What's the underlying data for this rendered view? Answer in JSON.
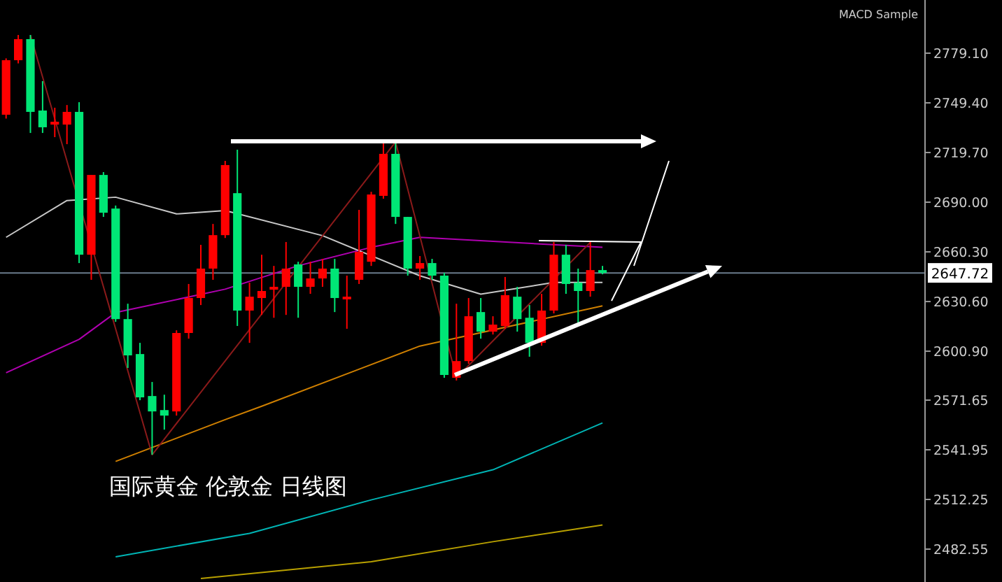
{
  "chart_data": {
    "type": "candlestick",
    "title": "国际黄金 伦敦金 日线图",
    "annotations": [
      "MACD Sample"
    ],
    "categories": [
      null,
      null,
      null,
      null,
      null,
      null,
      null,
      null,
      null,
      null,
      null,
      null,
      null,
      null,
      null,
      null,
      null,
      null,
      null,
      null,
      null,
      null,
      null,
      null,
      null,
      null,
      null,
      null,
      null,
      null,
      null,
      null,
      null,
      null,
      null,
      null,
      null,
      null,
      null,
      null,
      null,
      null,
      null,
      null,
      null,
      null,
      null,
      null,
      null,
      null,
      null,
      null,
      null,
      null,
      null,
      null,
      null,
      null,
      null,
      null,
      null,
      null,
      null,
      null,
      null,
      null,
      null,
      null,
      null,
      null,
      null,
      null,
      null,
      null,
      null,
      null
    ],
    "ohlc": [
      [
        2742.3,
        2776,
        2740,
        2774.9
      ],
      [
        2774.9,
        2790,
        2773,
        2787.5
      ],
      [
        2787.5,
        2790,
        2731.4,
        2744
      ],
      [
        2744.8,
        2762.4,
        2731.4,
        2734.8
      ],
      [
        2736.4,
        2746.5,
        2728.9,
        2738.1
      ],
      [
        2736.4,
        2748.1,
        2724.7,
        2744
      ],
      [
        2744,
        2749.8,
        2653.6,
        2658.6
      ],
      [
        2658.6,
        2706.3,
        2643.6,
        2706.3
      ],
      [
        2706.3,
        2708,
        2681.2,
        2683.7
      ],
      [
        2686.2,
        2688,
        2618.5,
        2620.1
      ],
      [
        2620.1,
        2629.3,
        2590.9,
        2598.4
      ],
      [
        2599.2,
        2605.9,
        2571.6,
        2573.3
      ],
      [
        2574.1,
        2582.5,
        2539,
        2564.9
      ],
      [
        2565.7,
        2574.9,
        2554,
        2562.4
      ],
      [
        2564.9,
        2613.4,
        2562.4,
        2611.8
      ],
      [
        2611.8,
        2641.1,
        2608.4,
        2632.7
      ],
      [
        2632.7,
        2664.5,
        2628.5,
        2650.3
      ],
      [
        2650.3,
        2677,
        2643.6,
        2670.3
      ],
      [
        2670.3,
        2714.7,
        2668.6,
        2712.2
      ],
      [
        2695.4,
        2721.4,
        2616,
        2625.2
      ],
      [
        2625.2,
        2641.9,
        2605.9,
        2633.5
      ],
      [
        2632.7,
        2658.6,
        2622.6,
        2636.9
      ],
      [
        2637.7,
        2651.9,
        2620.9,
        2639.4
      ],
      [
        2639.4,
        2666.2,
        2622.6,
        2650.3
      ],
      [
        2652.8,
        2654.4,
        2620.9,
        2639.4
      ],
      [
        2639.4,
        2654.4,
        2635.2,
        2644.4
      ],
      [
        2644.4,
        2656.1,
        2639.4,
        2650.3
      ],
      [
        2650.3,
        2656.1,
        2624.3,
        2632.7
      ],
      [
        2631.9,
        2646.1,
        2614.3,
        2633.5
      ],
      [
        2643.6,
        2685.4,
        2641.1,
        2660.3
      ],
      [
        2654.4,
        2696.2,
        2651.9,
        2694.6
      ],
      [
        2693.8,
        2725.5,
        2692.1,
        2718.9
      ],
      [
        2718.9,
        2725.5,
        2677,
        2681.2
      ],
      [
        2681.2,
        2681.2,
        2646.1,
        2650.3
      ],
      [
        2650.3,
        2657.8,
        2643.6,
        2653.6
      ],
      [
        2653.6,
        2656.1,
        2643.6,
        2646.1
      ],
      [
        2646.1,
        2647.8,
        2585,
        2586.7
      ],
      [
        2585,
        2629.3,
        2583.4,
        2595
      ],
      [
        2595,
        2632.7,
        2593.4,
        2621.8
      ],
      [
        2624.3,
        2632.7,
        2608.4,
        2612.6
      ],
      [
        2612.6,
        2621.8,
        2610.9,
        2616.8
      ],
      [
        2615.9,
        2645.3,
        2614.3,
        2634.4
      ],
      [
        2633.5,
        2639.4,
        2612.6,
        2620.1
      ],
      [
        2620.9,
        2628.5,
        2597.6,
        2605.9
      ],
      [
        2605.9,
        2635.2,
        2604.2,
        2625.2
      ],
      [
        2625.2,
        2666.2,
        2623.5,
        2658.6
      ],
      [
        2658.6,
        2664.5,
        2635.2,
        2641.1
      ],
      [
        2641.9,
        2650.3,
        2615.9,
        2636.9
      ],
      [
        2636.9,
        2666.2,
        2633.5,
        2649.4
      ],
      [
        2649.4,
        2651.9,
        2646.9,
        2647.72
      ],
      null,
      null,
      null,
      null,
      null,
      null,
      null,
      null,
      null,
      null,
      null,
      null,
      null,
      null,
      null,
      null,
      null,
      null,
      null,
      null,
      null,
      null,
      null,
      null,
      null,
      null
    ],
    "colors": [
      "#ff0000",
      "#ff0000",
      "#00e676",
      "#00e676",
      "#ff0000",
      "#ff0000",
      "#00e676",
      "#ff0000",
      "#00e676",
      "#00e676",
      "#00e676",
      "#00e676",
      "#00e676",
      "#00e676",
      "#ff0000",
      "#ff0000",
      "#ff0000",
      "#ff0000",
      "#ff0000",
      "#00e676",
      "#ff0000",
      "#ff0000",
      "#ff0000",
      "#ff0000",
      "#00e676",
      "#ff0000",
      "#ff0000",
      "#00e676",
      "#ff0000",
      "#ff0000",
      "#ff0000",
      "#ff0000",
      "#00e676",
      "#00e676",
      "#ff0000",
      "#00e676",
      "#00e676",
      "#ff0000",
      "#ff0000",
      "#00e676",
      "#ff0000",
      "#ff0000",
      "#00e676",
      "#00e676",
      "#ff0000",
      "#ff0000",
      "#00e676",
      "#00e676",
      "#ff0000",
      "#00e676",
      null,
      null,
      null,
      null,
      null,
      null,
      null,
      null,
      null,
      null,
      null,
      null,
      null,
      null,
      null,
      null,
      null,
      null,
      null,
      null,
      null,
      null,
      null,
      null,
      null,
      null
    ],
    "series": [
      {
        "type": "line",
        "color": "#00b5b5",
        "values": [
          null,
          null,
          null,
          null,
          null,
          null,
          null,
          null,
          null,
          2478,
          null,
          null,
          null,
          null,
          null,
          null,
          null,
          null,
          null,
          null,
          2492,
          null,
          null,
          null,
          null,
          null,
          null,
          null,
          null,
          null,
          2512,
          null,
          null,
          null,
          null,
          null,
          null,
          null,
          null,
          null,
          2530,
          null,
          null,
          null,
          null,
          null,
          null,
          null,
          null,
          2558,
          null,
          null,
          null,
          null,
          null,
          null,
          null,
          null,
          null,
          null,
          null,
          null,
          null,
          null,
          null,
          null,
          null,
          null,
          null,
          null,
          null,
          null,
          null,
          null,
          null,
          null
        ]
      },
      {
        "type": "line",
        "color": "#b8a000",
        "values": [
          null,
          null,
          null,
          null,
          null,
          null,
          null,
          null,
          null,
          null,
          null,
          null,
          null,
          null,
          null,
          null,
          2465,
          null,
          null,
          null,
          null,
          null,
          null,
          null,
          null,
          null,
          null,
          null,
          null,
          null,
          2475,
          null,
          null,
          null,
          null,
          null,
          null,
          null,
          null,
          null,
          2487,
          null,
          null,
          null,
          null,
          null,
          null,
          null,
          null,
          2497,
          null,
          null,
          null,
          null,
          null,
          null,
          null,
          null,
          null,
          null,
          null,
          null,
          null,
          null,
          null,
          null,
          null,
          null,
          null,
          null,
          null,
          null,
          null,
          null,
          null,
          null
        ]
      },
      {
        "type": "line",
        "color": "#d08000",
        "values": [
          null,
          null,
          null,
          null,
          null,
          null,
          null,
          null,
          null,
          2535,
          null,
          null,
          null,
          null,
          null,
          null,
          null,
          null,
          2560,
          null,
          null,
          2568,
          null,
          null,
          null,
          null,
          null,
          null,
          null,
          null,
          null,
          null,
          null,
          null,
          2604,
          null,
          null,
          null,
          null,
          null,
          null,
          null,
          null,
          null,
          null,
          null,
          null,
          null,
          null,
          2628,
          null,
          null,
          null,
          null,
          null,
          null,
          null,
          null,
          null,
          null,
          null,
          null,
          null,
          null,
          null,
          null,
          null,
          null,
          null,
          null,
          null,
          null,
          null,
          null,
          null,
          null
        ]
      },
      {
        "type": "line",
        "color": "#b000b0",
        "values": [
          2588,
          null,
          null,
          null,
          null,
          null,
          2608,
          null,
          null,
          2624,
          null,
          null,
          null,
          null,
          null,
          null,
          null,
          null,
          2638,
          null,
          null,
          null,
          null,
          null,
          2652,
          null,
          null,
          null,
          null,
          null,
          2663,
          null,
          null,
          null,
          2669,
          null,
          null,
          null,
          null,
          null,
          null,
          null,
          null,
          null,
          null,
          null,
          null,
          null,
          null,
          2663,
          null,
          null,
          null,
          null,
          null,
          null,
          null,
          null,
          null,
          null,
          null,
          null,
          null,
          null,
          null,
          null,
          null,
          null,
          null,
          null,
          null,
          null,
          null,
          null,
          null,
          null
        ]
      },
      {
        "type": "line",
        "color": "#c8c8c8",
        "values": [
          2669,
          null,
          null,
          null,
          null,
          2691,
          null,
          null,
          null,
          2693,
          null,
          null,
          null,
          null,
          2683,
          null,
          null,
          null,
          2685,
          null,
          null,
          null,
          null,
          null,
          null,
          null,
          2670,
          null,
          null,
          null,
          null,
          null,
          null,
          null,
          2646,
          null,
          null,
          null,
          null,
          2635,
          null,
          null,
          null,
          null,
          null,
          2642,
          null,
          null,
          null,
          2642,
          null,
          null,
          null,
          null,
          null,
          null,
          null,
          null,
          null,
          null,
          null,
          null,
          null,
          null,
          null,
          null,
          null,
          null,
          null,
          null,
          null,
          null,
          null,
          null,
          null,
          null
        ]
      },
      {
        "type": "line",
        "color": "#8b1a1a",
        "values": [
          null,
          null,
          2790,
          null,
          null,
          null,
          null,
          null,
          null,
          null,
          null,
          null,
          2539,
          null,
          null,
          null,
          null,
          null,
          null,
          null,
          null,
          null,
          null,
          null,
          null,
          null,
          null,
          null,
          null,
          null,
          null,
          null,
          2726,
          null,
          null,
          null,
          null,
          2585,
          null,
          null,
          null,
          null,
          null,
          null,
          null,
          null,
          null,
          null,
          2666,
          null,
          null,
          null,
          null,
          null,
          null,
          null,
          null,
          null,
          null,
          null,
          null,
          null,
          null,
          null,
          null,
          null,
          null,
          null,
          null,
          null,
          null,
          null,
          null,
          null,
          null,
          null
        ]
      }
    ],
    "ylim": [
      2462.9,
      2810.9
    ],
    "yticks": [
      {
        "value": 2779.1,
        "label": "2779.10"
      },
      {
        "value": 2749.4,
        "label": "2749.40"
      },
      {
        "value": 2719.7,
        "label": "2719.70"
      },
      {
        "value": 2690,
        "label": "2690.00"
      },
      {
        "value": 2660.3,
        "label": "2660.30"
      },
      {
        "value": 2630.6,
        "label": "2630.60"
      },
      {
        "value": 2600.9,
        "label": "2600.90"
      },
      2571.65,
      2541.95,
      2512.25,
      2482.55
    ],
    "ref_lines": [
      {
        "axis": "y",
        "value": 2647.72,
        "label": "2647.72",
        "color": "#6a7b8c"
      }
    ]
  }
}
